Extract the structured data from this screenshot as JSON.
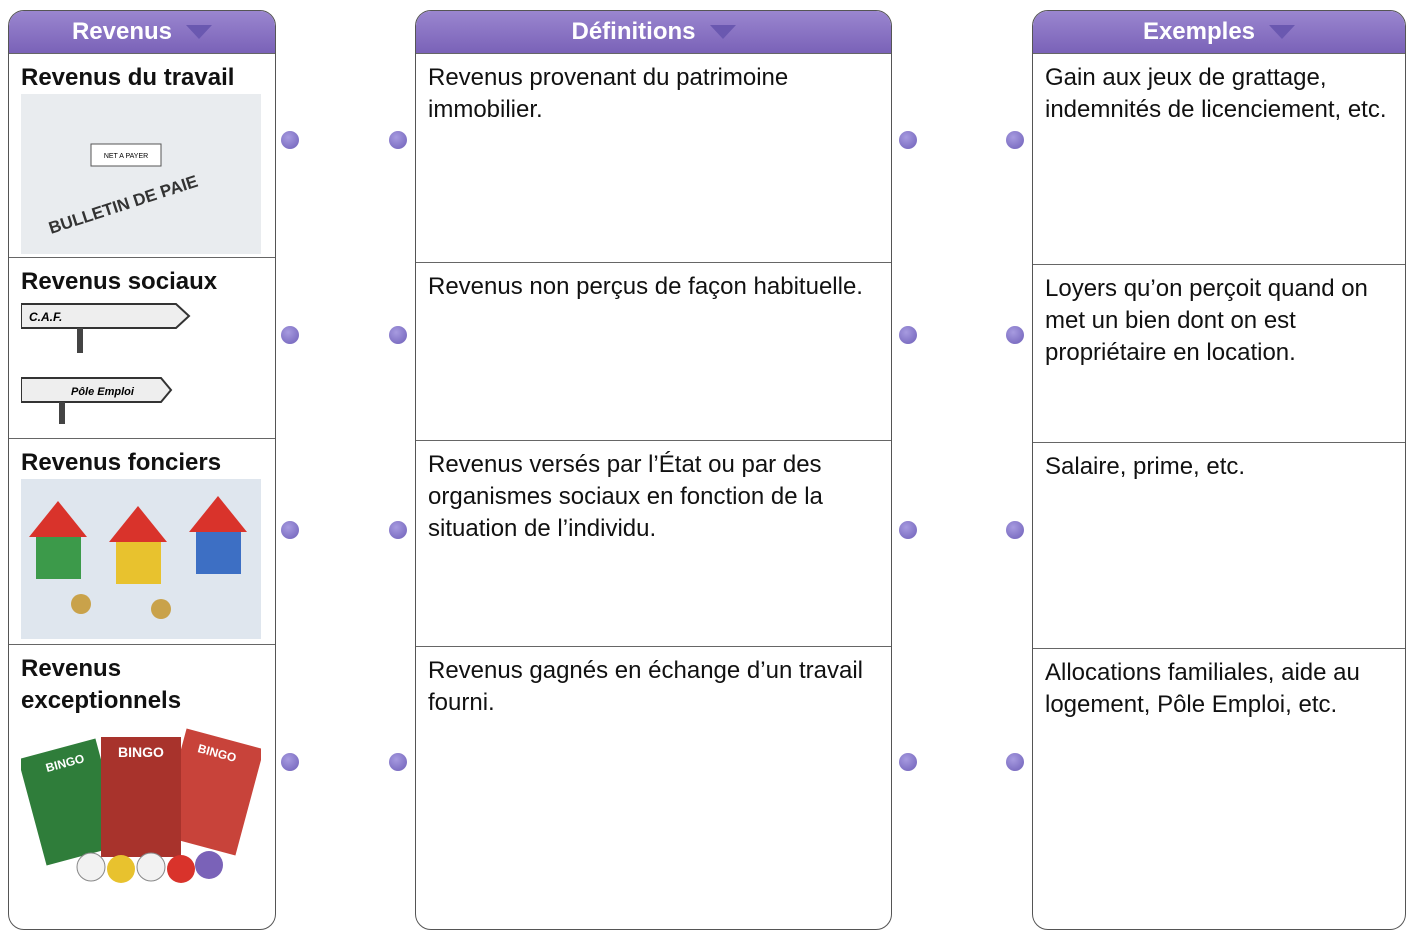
{
  "columns": [
    {
      "header": "Revenus",
      "items": [
        {
          "label": "Revenus du travail",
          "image_text": [
            "BULLETIN DE PAIE",
            "NET A PAYER"
          ]
        },
        {
          "label": "Revenus sociaux",
          "image_text": [
            "C.A.F.",
            "Pôle Emploi"
          ]
        },
        {
          "label": "Revenus fonciers"
        },
        {
          "label": "Revenus exceptionnels",
          "image_text": [
            "BINGO",
            "BINGO",
            "BINGO"
          ]
        }
      ]
    },
    {
      "header": "Définitions",
      "items": [
        "Revenus provenant du patrimoine immobilier.",
        "Revenus non perçus de façon habituelle.",
        "Revenus versés par l’État ou par des organismes sociaux en fonction de la situation de l’individu.",
        "Revenus gagnés en échange d’un travail fourni."
      ]
    },
    {
      "header": "Exemples",
      "items": [
        "Gain aux jeux de grattage, indemnités de licenciement, etc.",
        "Loyers qu’on perçoit quand on met un bien dont on est propriétaire en location.",
        "Salaire, prime, etc.",
        "Allocations familiales, aide au logement, Pôle Emploi, etc."
      ]
    }
  ]
}
